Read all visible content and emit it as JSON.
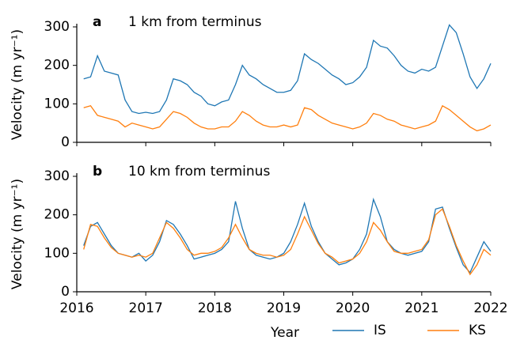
{
  "chart_data": [
    {
      "type": "line",
      "panel": "a",
      "title": "1 km from terminus",
      "ylabel": "Velocity (m yr⁻¹)",
      "x": [
        2016,
        2016.1,
        2016.2,
        2016.3,
        2016.4,
        2016.5,
        2016.6,
        2016.7,
        2016.8,
        2016.9,
        2017,
        2017.1,
        2017.2,
        2017.3,
        2017.4,
        2017.5,
        2017.6,
        2017.7,
        2017.8,
        2017.9,
        2018,
        2018.1,
        2018.2,
        2018.3,
        2018.4,
        2018.5,
        2018.6,
        2018.7,
        2018.8,
        2018.9,
        2019,
        2019.1,
        2019.2,
        2019.3,
        2019.4,
        2019.5,
        2019.6,
        2019.7,
        2019.8,
        2019.9,
        2020,
        2020.1,
        2020.2,
        2020.3,
        2020.4,
        2020.5,
        2020.6,
        2020.7,
        2020.8,
        2020.9,
        2021,
        2021.1,
        2021.2,
        2021.3,
        2021.4,
        2021.5,
        2021.6,
        2021.7,
        2021.8,
        2021.9,
        2022
      ],
      "series": [
        {
          "color": "#1f77b4",
          "values": [
            null,
            165,
            170,
            225,
            185,
            180,
            175,
            110,
            80,
            75,
            78,
            75,
            80,
            110,
            165,
            160,
            150,
            130,
            120,
            100,
            95,
            105,
            110,
            150,
            200,
            175,
            165,
            150,
            140,
            130,
            130,
            135,
            160,
            230,
            215,
            205,
            190,
            175,
            165,
            150,
            155,
            170,
            195,
            265,
            250,
            245,
            225,
            200,
            185,
            180,
            190,
            185,
            195,
            250,
            305,
            285,
            230,
            170,
            140,
            165,
            205
          ]
        },
        {
          "color": "#ff7f0e",
          "values": [
            null,
            90,
            95,
            70,
            65,
            60,
            55,
            40,
            50,
            45,
            40,
            35,
            40,
            60,
            80,
            75,
            65,
            50,
            40,
            35,
            35,
            40,
            40,
            55,
            80,
            70,
            55,
            45,
            40,
            40,
            45,
            40,
            45,
            90,
            85,
            70,
            60,
            50,
            45,
            40,
            35,
            40,
            50,
            75,
            70,
            60,
            55,
            45,
            40,
            35,
            40,
            45,
            55,
            95,
            85,
            70,
            55,
            40,
            30,
            35,
            45
          ]
        }
      ],
      "xlim": [
        2016,
        2022
      ],
      "xticks": [
        2016,
        2017,
        2018,
        2019,
        2020,
        2021,
        2022
      ],
      "ylim": [
        0,
        300
      ],
      "yticks": [
        0,
        100,
        200,
        300
      ]
    },
    {
      "type": "line",
      "panel": "b",
      "title": "10 km from terminus",
      "ylabel": "Velocity (m yr⁻¹)",
      "xlabel": "Year",
      "legend": "bottom right",
      "x": [
        2016,
        2016.1,
        2016.2,
        2016.3,
        2016.4,
        2016.5,
        2016.6,
        2016.7,
        2016.8,
        2016.9,
        2017,
        2017.1,
        2017.2,
        2017.3,
        2017.4,
        2017.5,
        2017.6,
        2017.7,
        2017.8,
        2017.9,
        2018,
        2018.1,
        2018.2,
        2018.3,
        2018.4,
        2018.5,
        2018.6,
        2018.7,
        2018.8,
        2018.9,
        2019,
        2019.1,
        2019.2,
        2019.3,
        2019.4,
        2019.5,
        2019.6,
        2019.7,
        2019.8,
        2019.9,
        2020,
        2020.1,
        2020.2,
        2020.3,
        2020.4,
        2020.5,
        2020.6,
        2020.7,
        2020.8,
        2020.9,
        2021,
        2021.1,
        2021.2,
        2021.3,
        2021.4,
        2021.5,
        2021.6,
        2021.7,
        2021.8,
        2021.9,
        2022
      ],
      "series": [
        {
          "name": "IS",
          "color": "#1f77b4",
          "values": [
            null,
            120,
            170,
            180,
            150,
            120,
            100,
            95,
            90,
            100,
            80,
            95,
            130,
            185,
            175,
            150,
            120,
            85,
            90,
            95,
            100,
            110,
            130,
            235,
            165,
            110,
            95,
            90,
            85,
            90,
            100,
            130,
            175,
            230,
            170,
            130,
            100,
            85,
            70,
            75,
            85,
            110,
            150,
            240,
            195,
            130,
            110,
            100,
            95,
            100,
            105,
            130,
            215,
            220,
            165,
            115,
            70,
            50,
            90,
            130,
            105
          ]
        },
        {
          "name": "KS",
          "color": "#ff7f0e",
          "values": [
            null,
            110,
            175,
            170,
            140,
            115,
            100,
            95,
            90,
            95,
            90,
            100,
            140,
            180,
            165,
            140,
            110,
            95,
            100,
            100,
            105,
            115,
            140,
            175,
            140,
            110,
            100,
            95,
            95,
            90,
            95,
            110,
            150,
            195,
            160,
            125,
            100,
            90,
            75,
            80,
            85,
            100,
            130,
            180,
            160,
            130,
            105,
            100,
            100,
            105,
            110,
            135,
            200,
            215,
            170,
            120,
            80,
            45,
            70,
            110,
            95
          ]
        }
      ],
      "xlim": [
        2016,
        2022
      ],
      "xticks": [
        2016,
        2017,
        2018,
        2019,
        2020,
        2021,
        2022
      ],
      "ylim": [
        0,
        300
      ],
      "yticks": [
        0,
        100,
        200,
        300
      ]
    }
  ]
}
